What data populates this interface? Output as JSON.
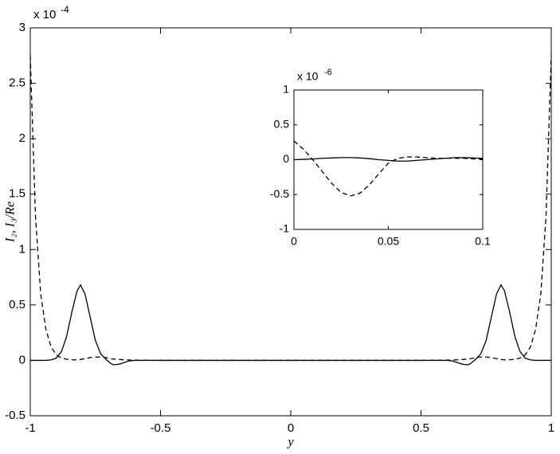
{
  "chart_data": [
    {
      "type": "line",
      "x_label": "y",
      "y_label": "I₂, I₃/Re",
      "y_scale_label": "x 10",
      "y_scale_exponent": "-4",
      "x": [
        -1,
        -0.98,
        -0.96,
        -0.94,
        -0.92,
        -0.9,
        -0.88,
        -0.86,
        -0.84,
        -0.82,
        -0.807,
        -0.79,
        -0.77,
        -0.75,
        -0.73,
        -0.71,
        -0.69,
        -0.68,
        -0.66,
        -0.64,
        -0.62,
        -0.6,
        -0.5,
        -0.4,
        -0.3,
        -0.2,
        -0.1,
        0,
        0.1,
        0.2,
        0.3,
        0.4,
        0.5,
        0.6,
        0.62,
        0.64,
        0.66,
        0.68,
        0.69,
        0.71,
        0.73,
        0.75,
        0.77,
        0.79,
        0.807,
        0.82,
        0.84,
        0.86,
        0.88,
        0.9,
        0.92,
        0.94,
        0.96,
        0.98,
        1
      ],
      "series": [
        {
          "style": "solid",
          "color": "#000000",
          "values": [
            0,
            0,
            0,
            0,
            0.004,
            0.02,
            0.08,
            0.22,
            0.44,
            0.63,
            0.68,
            0.6,
            0.39,
            0.18,
            0.06,
            0.01,
            -0.03,
            -0.04,
            -0.035,
            -0.02,
            -0.005,
            0,
            0,
            0,
            0,
            0,
            0,
            0,
            0,
            0,
            0,
            0,
            0,
            0,
            -0.005,
            -0.02,
            -0.035,
            -0.04,
            -0.03,
            0.01,
            0.06,
            0.18,
            0.39,
            0.6,
            0.68,
            0.63,
            0.44,
            0.22,
            0.08,
            0.02,
            0.004,
            0,
            0,
            0,
            0
          ]
        },
        {
          "style": "dashed",
          "color": "#000000",
          "values": [
            2.75,
            1.3,
            0.6,
            0.28,
            0.12,
            0.05,
            0.02,
            0.01,
            0.005,
            0.005,
            0.008,
            0.015,
            0.025,
            0.03,
            0.03,
            0.025,
            0.015,
            0.012,
            0.008,
            0.005,
            0.003,
            0.002,
            0,
            0,
            0,
            0,
            0,
            0,
            0,
            0,
            0,
            0,
            0,
            0.002,
            0.003,
            0.005,
            0.008,
            0.012,
            0.015,
            0.025,
            0.03,
            0.03,
            0.025,
            0.015,
            0.008,
            0.005,
            0.005,
            0.01,
            0.02,
            0.05,
            0.12,
            0.28,
            0.6,
            1.3,
            2.75
          ]
        }
      ],
      "xlim": [
        -1,
        1
      ],
      "ylim": [
        -0.5,
        3
      ],
      "xticks": [
        -1,
        -0.5,
        0,
        0.5,
        1
      ],
      "yticks": [
        -0.5,
        0,
        0.5,
        1,
        1.5,
        2,
        2.5,
        3
      ]
    },
    {
      "type": "line",
      "y_scale_label": "x 10",
      "y_scale_exponent": "-6",
      "x": [
        0,
        0.005,
        0.01,
        0.015,
        0.02,
        0.025,
        0.03,
        0.035,
        0.04,
        0.045,
        0.05,
        0.055,
        0.06,
        0.065,
        0.07,
        0.075,
        0.08,
        0.085,
        0.09,
        0.095,
        0.1
      ],
      "series": [
        {
          "style": "solid",
          "color": "#000000",
          "values": [
            0,
            0.005,
            0.01,
            0.02,
            0.025,
            0.03,
            0.03,
            0.025,
            0.015,
            0,
            -0.01,
            -0.02,
            -0.02,
            -0.01,
            0,
            0.01,
            0.02,
            0.03,
            0.03,
            0.025,
            0.02
          ]
        },
        {
          "style": "dashed",
          "color": "#000000",
          "values": [
            0.27,
            0.15,
            0,
            -0.17,
            -0.34,
            -0.47,
            -0.52,
            -0.48,
            -0.36,
            -0.2,
            -0.05,
            0.02,
            0.04,
            0.04,
            0.03,
            0.02,
            0.02,
            0.02,
            0.02,
            0.01,
            0.01
          ]
        }
      ],
      "xlim": [
        0,
        0.1
      ],
      "ylim": [
        -1,
        1
      ],
      "xticks": [
        0,
        0.05,
        0.1
      ],
      "yticks": [
        -1,
        -0.5,
        0,
        0.5,
        1
      ]
    }
  ]
}
